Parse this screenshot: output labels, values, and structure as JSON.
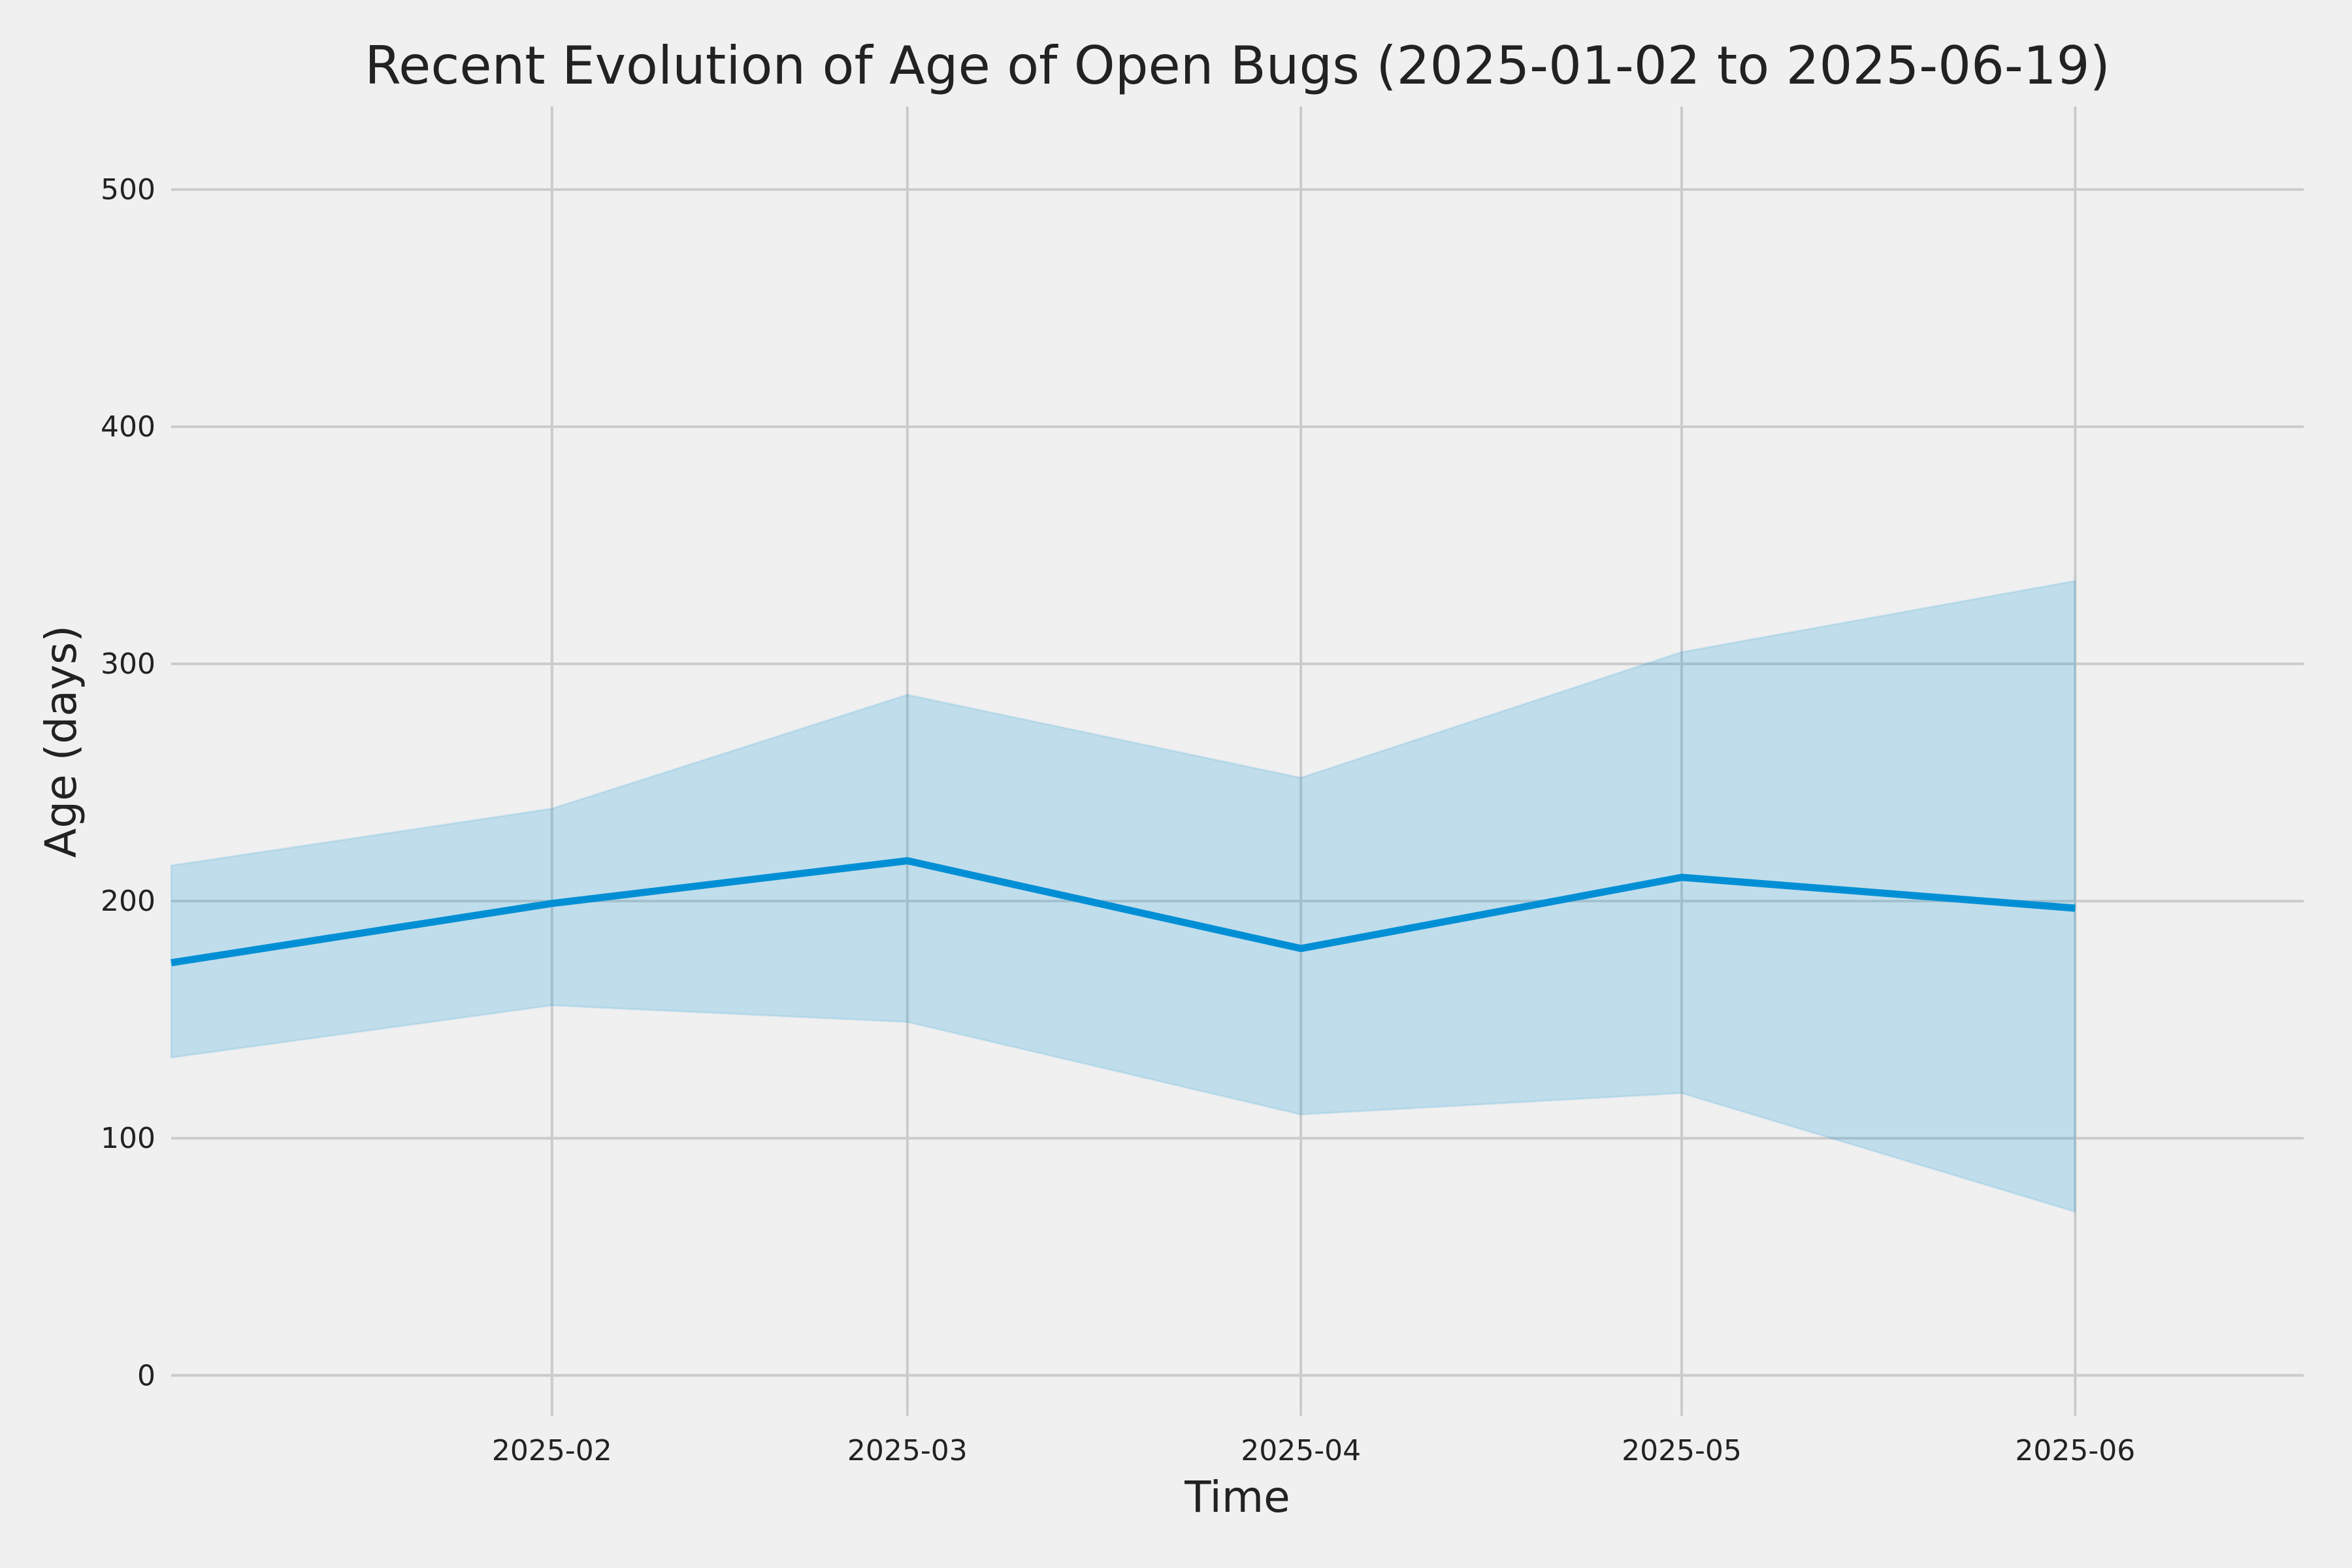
{
  "chart_data": {
    "type": "line",
    "title": "Recent Evolution of Age of Open Bugs (2025-01-02 to 2025-06-19)",
    "xlabel": "Time",
    "ylabel": "Age (days)",
    "xlim": [
      "2025-01-02",
      "2025-06-19"
    ],
    "ylim": [
      -17,
      535
    ],
    "x_ticks": [
      "2025-02",
      "2025-03",
      "2025-04",
      "2025-05",
      "2025-06"
    ],
    "x_tick_dates": [
      "2025-02-01",
      "2025-03-01",
      "2025-04-01",
      "2025-05-01",
      "2025-06-01"
    ],
    "y_ticks": [
      0,
      100,
      200,
      300,
      400,
      500
    ],
    "grid": true,
    "legend": "none",
    "series": [
      {
        "x": [
          "2025-01-02",
          "2025-02-01",
          "2025-03-01",
          "2025-04-01",
          "2025-05-01",
          "2025-06-01"
        ],
        "y": [
          174,
          199,
          217,
          180,
          210,
          197
        ],
        "band_upper": [
          215,
          239,
          287,
          252,
          305,
          335
        ],
        "band_lower": [
          134,
          156,
          149,
          110,
          119,
          69
        ],
        "color": "#008fd5"
      }
    ],
    "colors": {
      "background": "#f0f0f0",
      "grid": "#cbcbcb",
      "line": "#008fd5",
      "band": "#008fd5",
      "text": "#222222"
    }
  }
}
